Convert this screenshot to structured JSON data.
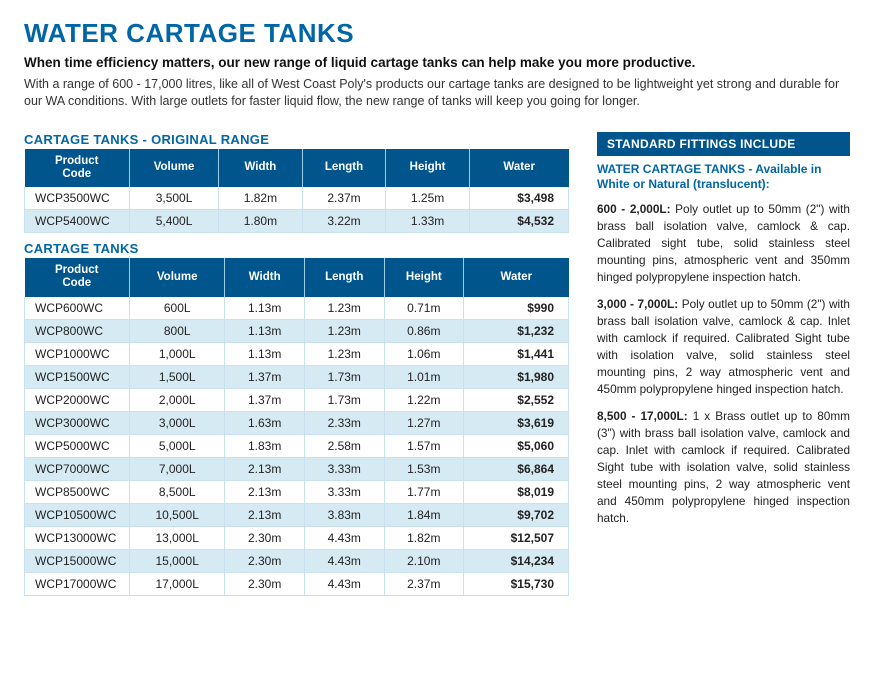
{
  "header": {
    "title": "WATER CARTAGE TANKS",
    "subheading": "When time efficiency matters, our new range of liquid cartage tanks can help make you more productive.",
    "body": "With a range of 600 - 17,000 litres, like all of West Coast Poly's products our cartage tanks are designed to be lightweight yet strong and durable for our WA conditions. With large outlets for faster liquid flow, the new range of tanks will keep you going for longer."
  },
  "tables": {
    "original": {
      "title": "CARTAGE TANKS - ORIGINAL RANGE",
      "columns": [
        "Product Code",
        "Volume",
        "Width",
        "Length",
        "Height",
        "Water"
      ],
      "rows": [
        [
          "WCP3500WC",
          "3,500L",
          "1.82m",
          "2.37m",
          "1.25m",
          "$3,498"
        ],
        [
          "WCP5400WC",
          "5,400L",
          "1.80m",
          "3.22m",
          "1.33m",
          "$4,532"
        ]
      ]
    },
    "main": {
      "title": "CARTAGE TANKS",
      "columns": [
        "Product Code",
        "Volume",
        "Width",
        "Length",
        "Height",
        "Water"
      ],
      "rows": [
        [
          "WCP600WC",
          "600L",
          "1.13m",
          "1.23m",
          "0.71m",
          "$990"
        ],
        [
          "WCP800WC",
          "800L",
          "1.13m",
          "1.23m",
          "0.86m",
          "$1,232"
        ],
        [
          "WCP1000WC",
          "1,000L",
          "1.13m",
          "1.23m",
          "1.06m",
          "$1,441"
        ],
        [
          "WCP1500WC",
          "1,500L",
          "1.37m",
          "1.73m",
          "1.01m",
          "$1,980"
        ],
        [
          "WCP2000WC",
          "2,000L",
          "1.37m",
          "1.73m",
          "1.22m",
          "$2,552"
        ],
        [
          "WCP3000WC",
          "3,000L",
          "1.63m",
          "2.33m",
          "1.27m",
          "$3,619"
        ],
        [
          "WCP5000WC",
          "5,000L",
          "1.83m",
          "2.58m",
          "1.57m",
          "$5,060"
        ],
        [
          "WCP7000WC",
          "7,000L",
          "2.13m",
          "3.33m",
          "1.53m",
          "$6,864"
        ],
        [
          "WCP8500WC",
          "8,500L",
          "2.13m",
          "3.33m",
          "1.77m",
          "$8,019"
        ],
        [
          "WCP10500WC",
          "10,500L",
          "2.13m",
          "3.83m",
          "1.84m",
          "$9,702"
        ],
        [
          "WCP13000WC",
          "13,000L",
          "2.30m",
          "4.43m",
          "1.82m",
          "$12,507"
        ],
        [
          "WCP15000WC",
          "15,000L",
          "2.30m",
          "4.43m",
          "2.10m",
          "$14,234"
        ],
        [
          "WCP17000WC",
          "17,000L",
          "2.30m",
          "4.43m",
          "2.37m",
          "$15,730"
        ]
      ]
    }
  },
  "sidebar": {
    "header": "STANDARD FITTINGS INCLUDE",
    "sub_label": "WATER CARTAGE TANKS",
    "sub_rest": " - Available in White or Natural (translucent):",
    "blocks": [
      {
        "lead": "600 - 2,000L:",
        "text": " Poly outlet up to 50mm (2\") with brass ball isolation valve, camlock & cap. Calibrated sight tube, solid stainless steel mounting pins, atmospheric vent and 350mm hinged polypropylene inspection hatch."
      },
      {
        "lead": "3,000 - 7,000L:",
        "text": " Poly outlet up to 50mm (2\") with brass ball isolation valve, camlock & cap. Inlet with camlock if required. Calibrated Sight tube with isolation valve, solid stainless steel mounting pins, 2 way atmospheric vent and 450mm polypropylene hinged inspection hatch."
      },
      {
        "lead": "8,500 - 17,000L:",
        "text": " 1 x Brass outlet up to 80mm (3\") with  brass ball isolation valve, camlock and cap. Inlet with camlock if required. Calibrated Sight tube with isolation valve, solid stainless steel mounting pins, 2 way atmospheric vent and 450mm polypropylene hinged inspection hatch."
      }
    ]
  },
  "style": {
    "brand_color": "#0066a6",
    "header_bg": "#00558c",
    "row_alt_bg": "#d6eaf4",
    "border_color": "#c9e1ee"
  }
}
